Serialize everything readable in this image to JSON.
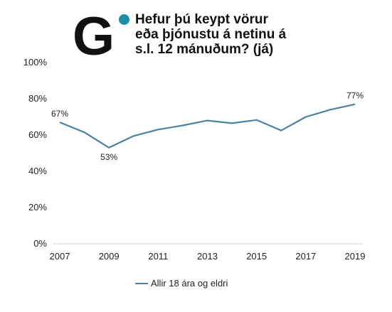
{
  "logo": {
    "letter": "G",
    "dot_color": "#1a8fa8"
  },
  "title_lines": [
    "Hefur þú keypt vörur",
    "eða þjónustu á netinu á",
    "s.l. 12 mánuðum? (já)"
  ],
  "chart_data": {
    "type": "line",
    "title": "Hefur þú keypt vörur eða þjónustu á netinu á s.l. 12 mánuðum? (já)",
    "x": [
      2007,
      2008,
      2009,
      2010,
      2011,
      2012,
      2013,
      2014,
      2015,
      2016,
      2017,
      2018,
      2019
    ],
    "series": [
      {
        "name": "Allir 18 ára og eldri",
        "color": "#4a82a3",
        "values": [
          67,
          61.5,
          53,
          59.5,
          63,
          65.3,
          68,
          66.5,
          68.3,
          62.5,
          70,
          74,
          77
        ]
      }
    ],
    "ylim": [
      0,
      100
    ],
    "yticks": [
      "0%",
      "20%",
      "40%",
      "60%",
      "80%",
      "100%"
    ],
    "ytick_values": [
      0,
      20,
      40,
      60,
      80,
      100
    ],
    "xticks": [
      "2007",
      "2009",
      "2011",
      "2013",
      "2015",
      "2017",
      "2019"
    ],
    "xtick_values": [
      2007,
      2009,
      2011,
      2013,
      2015,
      2017,
      2019
    ],
    "data_labels": [
      {
        "x": 2007,
        "text": "67%",
        "position": "above"
      },
      {
        "x": 2009,
        "text": "53%",
        "position": "below"
      },
      {
        "x": 2019,
        "text": "77%",
        "position": "above"
      }
    ],
    "grid": false,
    "legend": "bottom"
  }
}
